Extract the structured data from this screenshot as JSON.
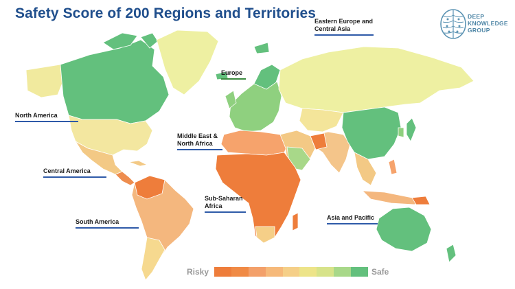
{
  "title": "Safety Score of 200 Regions and Territories",
  "logo": {
    "line1": "DEEP",
    "line2": "KNOWLEDGE",
    "line3": "GROUP"
  },
  "regions": {
    "north_america": "North America",
    "central_america": "Central America",
    "south_america": "South America",
    "europe": "Europe",
    "eastern_europe_line1": "Eastern Europe and",
    "eastern_europe_line2": "Central Asia",
    "middle_east_line1": "Middle East &",
    "middle_east_line2": "North Africa",
    "sub_saharan_line1": "Sub-Saharan",
    "sub_saharan_line2": "Africa",
    "asia_pacific": "Asia and Pacific"
  },
  "legend": {
    "low_label": "Risky",
    "high_label": "Safe",
    "colors": [
      "#ee7d3b",
      "#f08a45",
      "#f3a06a",
      "#f6b97a",
      "#f5cf88",
      "#ede489",
      "#d7e38a",
      "#a8d889",
      "#63c07d"
    ]
  },
  "colors": {
    "title": "#1f4e8c",
    "canada": "#63c07d",
    "usa": "#f3e7a0",
    "russia": "#eef0a2",
    "greenland": "#eef0a2",
    "china": "#63c07d",
    "australia": "#63c07d",
    "africa": "#ee7d3b",
    "south_america": "#f4b77e"
  }
}
